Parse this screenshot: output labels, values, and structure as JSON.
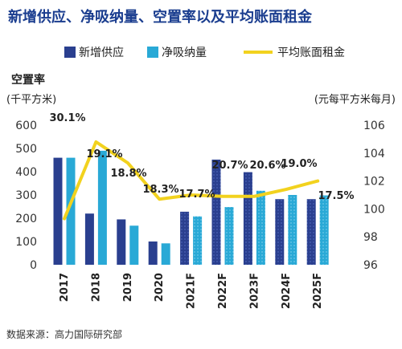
{
  "title": "新增供应、净吸纳量、空置率以及平均账面租金",
  "source": "数据来源：高力国际研究部",
  "colors": {
    "supply": "#2a3f8f",
    "absorption": "#29a9d6",
    "rent": "#f2d21e",
    "title": "#1a3d8f"
  },
  "chart_data": {
    "type": "bar",
    "categories": [
      "2017",
      "2018",
      "2019",
      "2020",
      "2021F",
      "2022F",
      "2023F",
      "2024F",
      "2025F"
    ],
    "forecast_from_index": 4,
    "series": [
      {
        "name": "新增供应",
        "type": "bar",
        "axis": "left",
        "values": [
          460,
          220,
          195,
          100,
          228,
          452,
          398,
          282,
          282
        ]
      },
      {
        "name": "净吸纳量",
        "type": "bar",
        "axis": "left",
        "values": [
          460,
          490,
          168,
          92,
          208,
          248,
          318,
          300,
          298
        ]
      },
      {
        "name": "平均账面租金",
        "type": "line",
        "axis": "right",
        "values": [
          99.3,
          104.8,
          103.3,
          100.7,
          101.0,
          100.9,
          100.9,
          101.4,
          102.0
        ]
      }
    ],
    "vacancy_labels": [
      "30.1%",
      "19.1%",
      "18.8%",
      "18.3%",
      "17.7%",
      "20.7%",
      "20.6%",
      "19.0%",
      "17.5%"
    ],
    "vacancy_title": "空置率",
    "ylabel_left": "(千平方米)",
    "ylabel_right": "(元每平方米每月)",
    "ylim_left": [
      0,
      600
    ],
    "yticks_left": [
      0,
      100,
      200,
      300,
      400,
      500,
      600
    ],
    "ylim_right": [
      96,
      106
    ],
    "yticks_right": [
      96,
      98,
      100,
      102,
      104,
      106
    ],
    "legend_position": "top",
    "grid": false
  }
}
